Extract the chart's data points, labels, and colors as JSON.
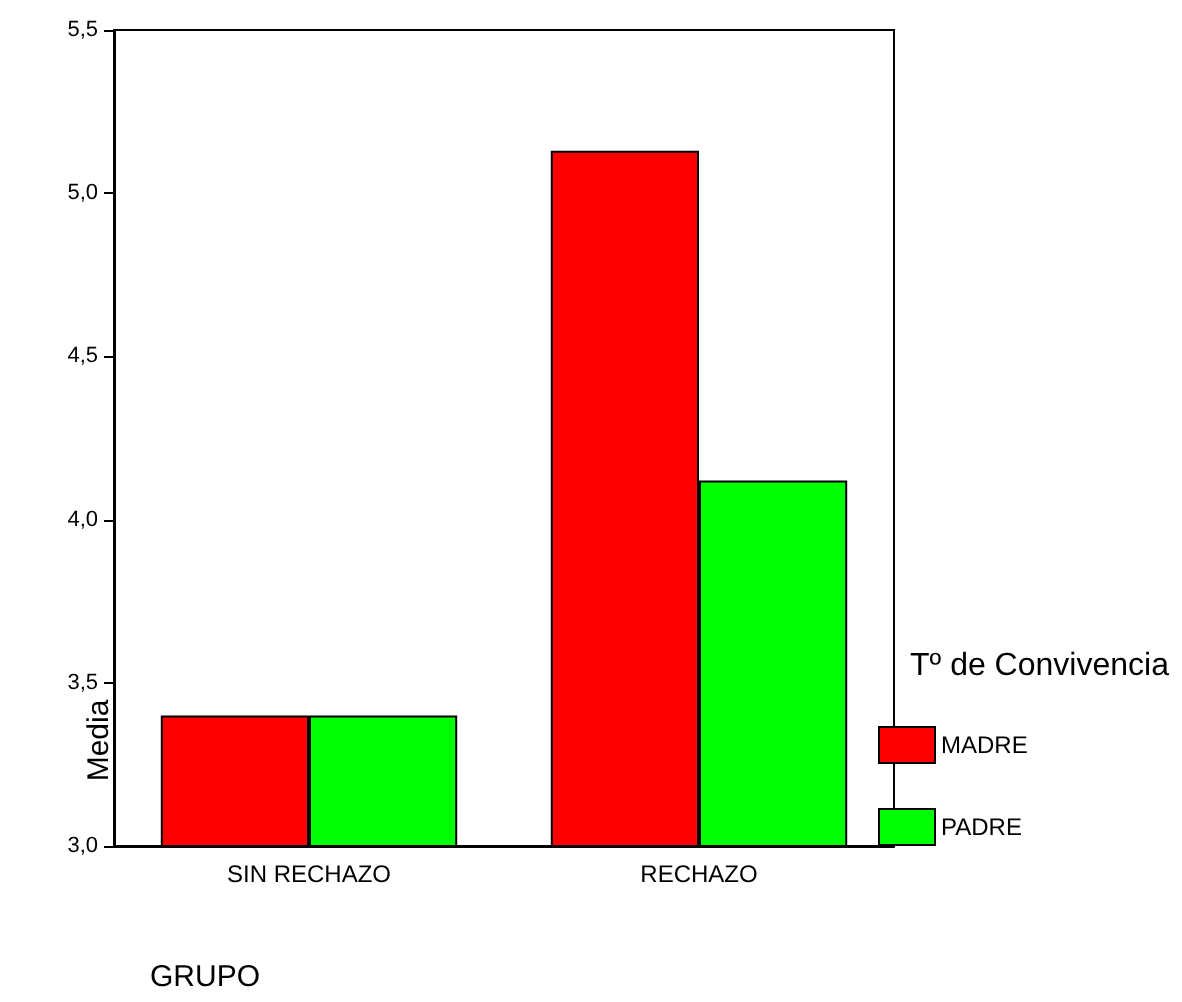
{
  "chart_data": {
    "type": "bar",
    "xlabel": "GRUPO",
    "ylabel": "Media",
    "legend_title": "Tº de Convivencia",
    "categories": [
      "SIN RECHAZO",
      "RECHAZO"
    ],
    "series": [
      {
        "name": "MADRE",
        "color": "#ff0000",
        "values": [
          3.4,
          5.13
        ]
      },
      {
        "name": "PADRE",
        "color": "#00ff00",
        "values": [
          3.4,
          4.12
        ]
      }
    ],
    "ylim": [
      3.0,
      5.5
    ],
    "yticks": [
      {
        "value": 3.0,
        "label": "3,0"
      },
      {
        "value": 3.5,
        "label": "3,5"
      },
      {
        "value": 4.0,
        "label": "4,0"
      },
      {
        "value": 4.5,
        "label": "4,5"
      },
      {
        "value": 5.0,
        "label": "5,0"
      },
      {
        "value": 5.5,
        "label": "5,5"
      }
    ],
    "grid": false,
    "legend": "right"
  }
}
